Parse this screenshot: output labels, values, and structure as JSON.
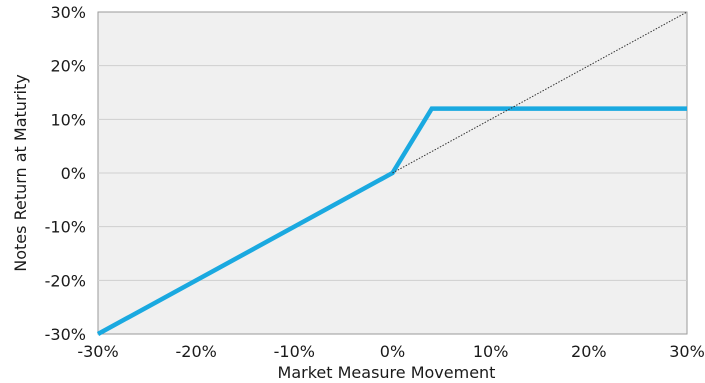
{
  "chart_data": {
    "type": "line",
    "title": "",
    "xlabel": "Market Measure Movement",
    "ylabel": "Notes Return at Maturity",
    "xlim": [
      -30,
      30
    ],
    "ylim": [
      -30,
      30
    ],
    "x_ticks": [
      "-30%",
      "-20%",
      "-10%",
      "0%",
      "10%",
      "20%",
      "30%"
    ],
    "y_ticks": [
      "30%",
      "20%",
      "10%",
      "0%",
      "-10%",
      "-20%",
      "-30%"
    ],
    "x_tick_values": [
      -30,
      -20,
      -10,
      0,
      10,
      20,
      30
    ],
    "y_tick_values": [
      30,
      20,
      10,
      0,
      -10,
      -20,
      -30
    ],
    "grid": "horizontal",
    "legend": "none",
    "series": [
      {
        "x": [
          -30,
          0,
          4,
          30
        ],
        "y": [
          -30,
          0,
          12,
          12
        ],
        "color": "#1aa9e0",
        "style": "solid"
      },
      {
        "x": [
          0,
          30
        ],
        "y": [
          0,
          30
        ],
        "color": "#333333",
        "style": "dotted"
      }
    ],
    "plot_background": "#f0f0f0"
  }
}
